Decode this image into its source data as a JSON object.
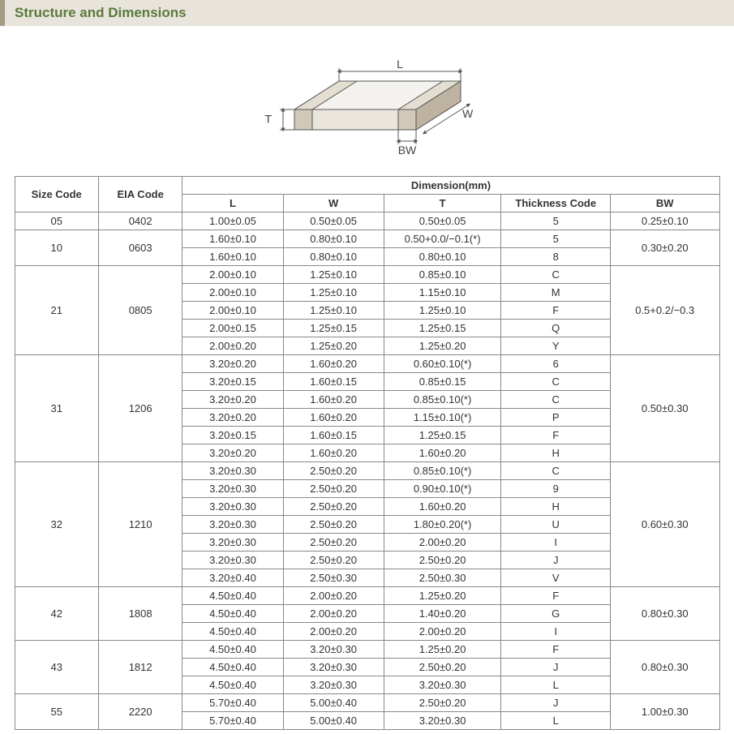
{
  "header": {
    "title": "Structure and Dimensions"
  },
  "diagram": {
    "labels": {
      "L": "L",
      "W": "W",
      "T": "T",
      "BW": "BW"
    },
    "colors": {
      "stroke": "#555555",
      "fill_top": "#f4f2ee",
      "fill_front": "#eae6de",
      "fill_side": "#d8d2c6",
      "terminal_front": "#d0c8b8",
      "terminal_side": "#bdb3a0",
      "terminal_top": "#e4ded2",
      "text": "#444444",
      "arrow": "#555555"
    },
    "font_size_label": 14
  },
  "table": {
    "header": {
      "size_code": "Size Code",
      "eia_code": "EIA Code",
      "dimension_group": "Dimension(mm)",
      "L": "L",
      "W": "W",
      "T": "T",
      "thickness_code": "Thickness  Code",
      "BW": "BW"
    },
    "colors": {
      "border": "#888888",
      "text": "#333333",
      "bg": "#ffffff"
    },
    "font_size": 13,
    "groups": [
      {
        "size_code": "05",
        "eia_code": "0402",
        "bw": "0.25±0.10",
        "rows": [
          {
            "L": "1.00±0.05",
            "W": "0.50±0.05",
            "T": "0.50±0.05",
            "tc": "5"
          }
        ]
      },
      {
        "size_code": "10",
        "eia_code": "0603",
        "bw": "0.30±0.20",
        "rows": [
          {
            "L": "1.60±0.10",
            "W": "0.80±0.10",
            "T": "0.50+0.0/−0.1(*)",
            "tc": "5"
          },
          {
            "L": "1.60±0.10",
            "W": "0.80±0.10",
            "T": "0.80±0.10",
            "tc": "8"
          }
        ]
      },
      {
        "size_code": "21",
        "eia_code": "0805",
        "bw": "0.5+0.2/−0.3",
        "rows": [
          {
            "L": "2.00±0.10",
            "W": "1.25±0.10",
            "T": "0.85±0.10",
            "tc": "C"
          },
          {
            "L": "2.00±0.10",
            "W": "1.25±0.10",
            "T": "1.15±0.10",
            "tc": "M"
          },
          {
            "L": "2.00±0.10",
            "W": "1.25±0.10",
            "T": "1.25±0.10",
            "tc": "F"
          },
          {
            "L": "2.00±0.15",
            "W": "1.25±0.15",
            "T": "1.25±0.15",
            "tc": "Q"
          },
          {
            "L": "2.00±0.20",
            "W": "1.25±0.20",
            "T": "1.25±0.20",
            "tc": "Y"
          }
        ]
      },
      {
        "size_code": "31",
        "eia_code": "1206",
        "bw": "0.50±0.30",
        "rows": [
          {
            "L": "3.20±0.20",
            "W": "1.60±0.20",
            "T": "0.60±0.10(*)",
            "tc": "6"
          },
          {
            "L": "3.20±0.15",
            "W": "1.60±0.15",
            "T": "0.85±0.15",
            "tc": "C"
          },
          {
            "L": "3.20±0.20",
            "W": "1.60±0.20",
            "T": "0.85±0.10(*)",
            "tc": "C"
          },
          {
            "L": "3.20±0.20",
            "W": "1.60±0.20",
            "T": "1.15±0.10(*)",
            "tc": "P"
          },
          {
            "L": "3.20±0.15",
            "W": "1.60±0.15",
            "T": "1.25±0.15",
            "tc": "F"
          },
          {
            "L": "3.20±0.20",
            "W": "1.60±0.20",
            "T": "1.60±0.20",
            "tc": "H"
          }
        ]
      },
      {
        "size_code": "32",
        "eia_code": "1210",
        "bw": "0.60±0.30",
        "rows": [
          {
            "L": "3.20±0.30",
            "W": "2.50±0.20",
            "T": "0.85±0.10(*)",
            "tc": "C"
          },
          {
            "L": "3.20±0.30",
            "W": "2.50±0.20",
            "T": "0.90±0.10(*)",
            "tc": "9"
          },
          {
            "L": "3.20±0.30",
            "W": "2.50±0.20",
            "T": "1.60±0.20",
            "tc": "H"
          },
          {
            "L": "3.20±0.30",
            "W": "2.50±0.20",
            "T": "1.80±0.20(*)",
            "tc": "U"
          },
          {
            "L": "3.20±0.30",
            "W": "2.50±0.20",
            "T": "2.00±0.20",
            "tc": "I"
          },
          {
            "L": "3.20±0.30",
            "W": "2.50±0.20",
            "T": "2.50±0.20",
            "tc": "J"
          },
          {
            "L": "3.20±0.40",
            "W": "2.50±0.30",
            "T": "2.50±0.30",
            "tc": "V"
          }
        ]
      },
      {
        "size_code": "42",
        "eia_code": "1808",
        "bw": "0.80±0.30",
        "rows": [
          {
            "L": "4.50±0.40",
            "W": "2.00±0.20",
            "T": "1.25±0.20",
            "tc": "F"
          },
          {
            "L": "4.50±0.40",
            "W": "2.00±0.20",
            "T": "1.40±0.20",
            "tc": "G"
          },
          {
            "L": "4.50±0.40",
            "W": "2.00±0.20",
            "T": "2.00±0.20",
            "tc": "I"
          }
        ]
      },
      {
        "size_code": "43",
        "eia_code": "1812",
        "bw": "0.80±0.30",
        "rows": [
          {
            "L": "4.50±0.40",
            "W": "3.20±0.30",
            "T": "1.25±0.20",
            "tc": "F"
          },
          {
            "L": "4.50±0.40",
            "W": "3.20±0.30",
            "T": "2.50±0.20",
            "tc": "J"
          },
          {
            "L": "4.50±0.40",
            "W": "3.20±0.30",
            "T": "3.20±0.30",
            "tc": "L"
          }
        ]
      },
      {
        "size_code": "55",
        "eia_code": "2220",
        "bw": "1.00±0.30",
        "rows": [
          {
            "L": "5.70±0.40",
            "W": "5.00±0.40",
            "T": "2.50±0.20",
            "tc": "J"
          },
          {
            "L": "5.70±0.40",
            "W": "5.00±0.40",
            "T": "3.20±0.30",
            "tc": "L"
          }
        ]
      }
    ]
  }
}
